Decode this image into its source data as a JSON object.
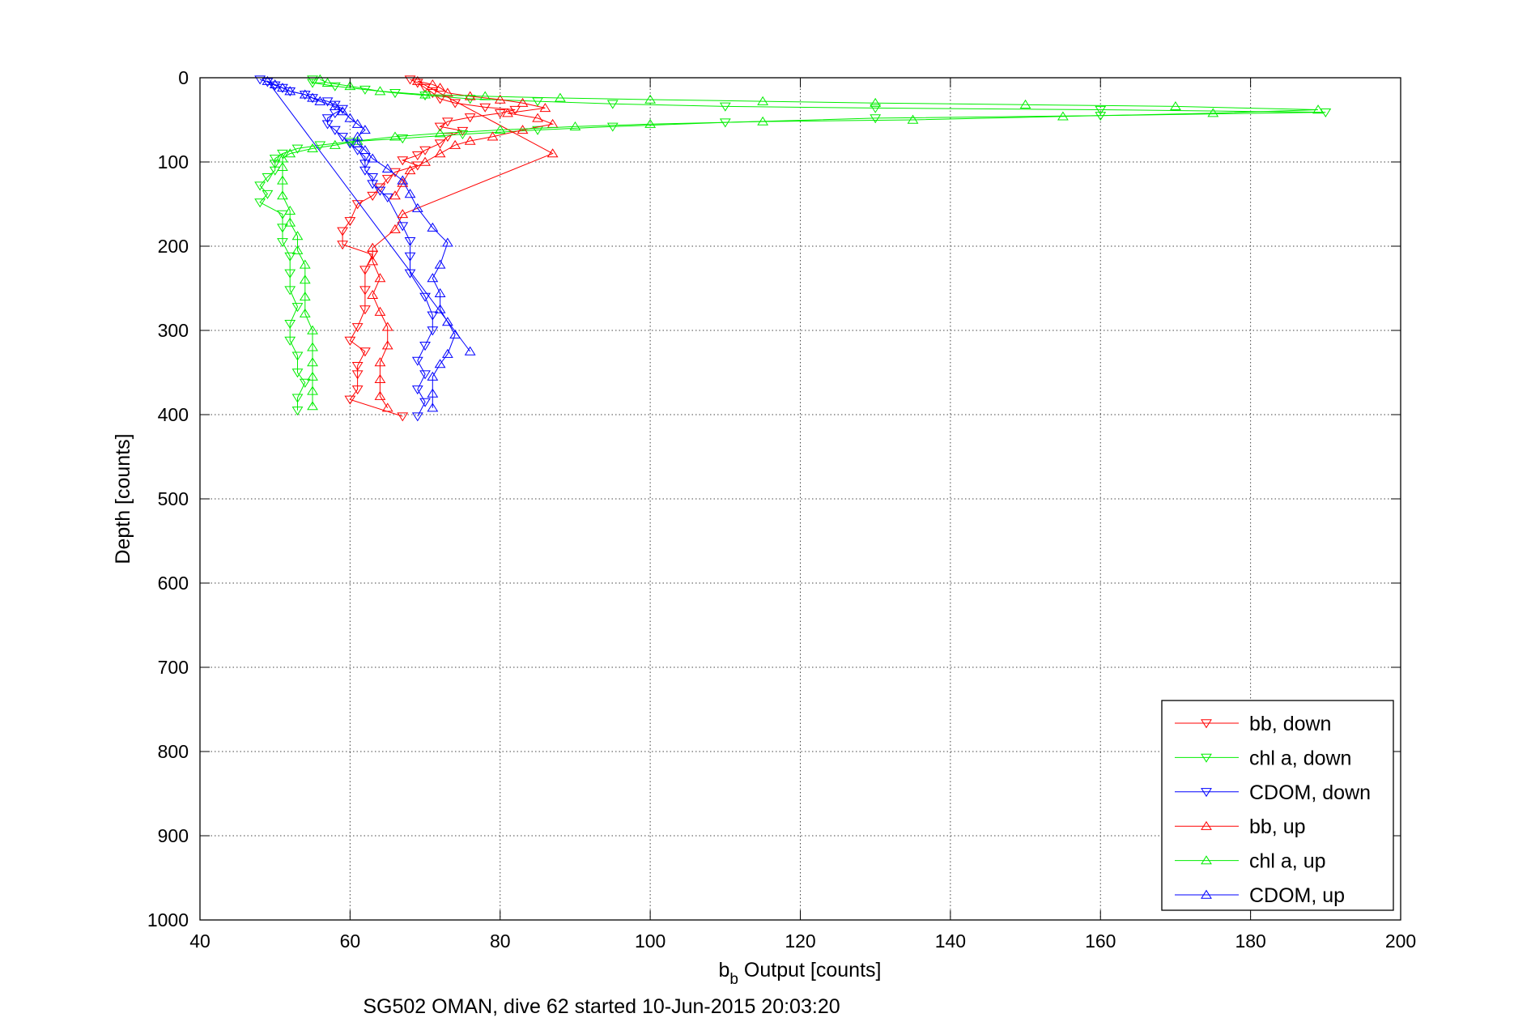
{
  "chart_data": {
    "type": "scatter",
    "xlabel_main": "b",
    "xlabel_sub": "b",
    "xlabel_rest": " Output [counts]",
    "ylabel": "Depth [counts]",
    "caption": "SG502 OMAN, dive 62 started 10-Jun-2015 20:03:20",
    "xlim": [
      40,
      200
    ],
    "ylim": [
      0,
      1000
    ],
    "y_reversed": true,
    "xticks": [
      "40",
      "60",
      "80",
      "100",
      "120",
      "140",
      "160",
      "180",
      "200"
    ],
    "yticks": [
      "0",
      "100",
      "200",
      "300",
      "400",
      "500",
      "600",
      "700",
      "800",
      "900",
      "1000"
    ],
    "grid": true,
    "legend_position": "bottom-right",
    "series": [
      {
        "name": "bb, down",
        "color": "#ff0000",
        "marker": "triangle-down",
        "points": [
          [
            68,
            2
          ],
          [
            69,
            6
          ],
          [
            70,
            12
          ],
          [
            71,
            18
          ],
          [
            72,
            25
          ],
          [
            74,
            30
          ],
          [
            78,
            35
          ],
          [
            82,
            38
          ],
          [
            80,
            42
          ],
          [
            76,
            47
          ],
          [
            73,
            52
          ],
          [
            72,
            58
          ],
          [
            75,
            63
          ],
          [
            73,
            70
          ],
          [
            72,
            78
          ],
          [
            70,
            86
          ],
          [
            69,
            92
          ],
          [
            67,
            98
          ],
          [
            69,
            104
          ],
          [
            66,
            112
          ],
          [
            65,
            120
          ],
          [
            64,
            130
          ],
          [
            63,
            140
          ],
          [
            61,
            150
          ],
          [
            60,
            170
          ],
          [
            59,
            182
          ],
          [
            59,
            198
          ],
          [
            63,
            210
          ],
          [
            62,
            228
          ],
          [
            62,
            252
          ],
          [
            62,
            275
          ],
          [
            61,
            296
          ],
          [
            60,
            312
          ],
          [
            62,
            325
          ],
          [
            61,
            342
          ],
          [
            61,
            352
          ],
          [
            61,
            370
          ],
          [
            60,
            382
          ],
          [
            67,
            402
          ]
        ]
      },
      {
        "name": "chl a, down",
        "color": "#00ee00",
        "marker": "triangle-down",
        "points": [
          [
            55,
            2
          ],
          [
            55,
            6
          ],
          [
            58,
            10
          ],
          [
            62,
            14
          ],
          [
            66,
            18
          ],
          [
            70,
            21
          ],
          [
            76,
            25
          ],
          [
            85,
            28
          ],
          [
            95,
            31
          ],
          [
            110,
            34
          ],
          [
            130,
            36
          ],
          [
            160,
            38
          ],
          [
            190,
            41
          ],
          [
            160,
            45
          ],
          [
            130,
            48
          ],
          [
            110,
            53
          ],
          [
            95,
            58
          ],
          [
            85,
            62
          ],
          [
            75,
            67
          ],
          [
            67,
            72
          ],
          [
            60,
            76
          ],
          [
            56,
            80
          ],
          [
            53,
            84
          ],
          [
            51,
            90
          ],
          [
            50,
            96
          ],
          [
            50,
            102
          ],
          [
            50,
            110
          ],
          [
            49,
            118
          ],
          [
            48,
            128
          ],
          [
            49,
            138
          ],
          [
            48,
            148
          ],
          [
            51,
            162
          ],
          [
            51,
            178
          ],
          [
            51,
            195
          ],
          [
            52,
            212
          ],
          [
            52,
            232
          ],
          [
            52,
            252
          ],
          [
            53,
            272
          ],
          [
            52,
            292
          ],
          [
            52,
            312
          ],
          [
            53,
            330
          ],
          [
            53,
            350
          ],
          [
            54,
            362
          ],
          [
            53,
            380
          ],
          [
            53,
            395
          ]
        ]
      },
      {
        "name": "CDOM, down",
        "color": "#0000ff",
        "marker": "triangle-down",
        "points": [
          [
            48,
            2
          ],
          [
            49,
            5
          ],
          [
            50,
            9
          ],
          [
            51,
            12
          ],
          [
            52,
            16
          ],
          [
            54,
            20
          ],
          [
            55,
            24
          ],
          [
            57,
            28
          ],
          [
            58,
            32
          ],
          [
            59,
            37
          ],
          [
            58,
            42
          ],
          [
            57,
            48
          ],
          [
            57,
            55
          ],
          [
            58,
            62
          ],
          [
            59,
            70
          ],
          [
            60,
            78
          ],
          [
            61,
            86
          ],
          [
            62,
            94
          ],
          [
            62,
            102
          ],
          [
            62,
            110
          ],
          [
            63,
            118
          ],
          [
            63,
            126
          ],
          [
            64,
            134
          ],
          [
            65,
            142
          ],
          [
            67,
            176
          ],
          [
            68,
            194
          ],
          [
            68,
            212
          ],
          [
            68,
            232
          ],
          [
            70,
            260
          ],
          [
            71,
            282
          ],
          [
            71,
            300
          ],
          [
            70,
            318
          ],
          [
            69,
            336
          ],
          [
            70,
            352
          ],
          [
            69,
            370
          ],
          [
            70,
            385
          ],
          [
            69,
            402
          ]
        ]
      },
      {
        "name": "bb, up",
        "color": "#ff0000",
        "marker": "triangle-up",
        "points": [
          [
            66,
            140
          ],
          [
            67,
            125
          ],
          [
            68,
            110
          ],
          [
            70,
            100
          ],
          [
            72,
            90
          ],
          [
            74,
            80
          ],
          [
            76,
            75
          ],
          [
            79,
            70
          ],
          [
            83,
            62
          ],
          [
            87,
            55
          ],
          [
            85,
            48
          ],
          [
            81,
            42
          ],
          [
            86,
            36
          ],
          [
            83,
            30
          ],
          [
            80,
            26
          ],
          [
            76,
            22
          ],
          [
            73,
            18
          ],
          [
            72,
            12
          ],
          [
            71,
            8
          ],
          [
            69,
            4
          ],
          [
            87,
            90
          ],
          [
            67,
            162
          ],
          [
            66,
            180
          ],
          [
            63,
            202
          ],
          [
            63,
            218
          ],
          [
            64,
            238
          ],
          [
            63,
            258
          ],
          [
            64,
            278
          ],
          [
            65,
            296
          ],
          [
            65,
            318
          ],
          [
            64,
            338
          ],
          [
            64,
            358
          ],
          [
            64,
            378
          ],
          [
            65,
            392
          ]
        ]
      },
      {
        "name": "chl a, up",
        "color": "#00ee00",
        "marker": "triangle-up",
        "points": [
          [
            55,
            390
          ],
          [
            55,
            372
          ],
          [
            55,
            355
          ],
          [
            55,
            338
          ],
          [
            55,
            320
          ],
          [
            55,
            300
          ],
          [
            54,
            280
          ],
          [
            54,
            260
          ],
          [
            54,
            240
          ],
          [
            54,
            222
          ],
          [
            53,
            205
          ],
          [
            53,
            188
          ],
          [
            52,
            172
          ],
          [
            52,
            158
          ],
          [
            51,
            140
          ],
          [
            51,
            122
          ],
          [
            51,
            106
          ],
          [
            51,
            96
          ],
          [
            52,
            90
          ],
          [
            55,
            84
          ],
          [
            58,
            80
          ],
          [
            61,
            75
          ],
          [
            66,
            70
          ],
          [
            72,
            66
          ],
          [
            80,
            62
          ],
          [
            90,
            58
          ],
          [
            100,
            55
          ],
          [
            115,
            52
          ],
          [
            135,
            50
          ],
          [
            155,
            46
          ],
          [
            175,
            42
          ],
          [
            189,
            38
          ],
          [
            170,
            34
          ],
          [
            150,
            32
          ],
          [
            130,
            30
          ],
          [
            115,
            28
          ],
          [
            100,
            26
          ],
          [
            88,
            24
          ],
          [
            78,
            22
          ],
          [
            70,
            20
          ],
          [
            64,
            16
          ],
          [
            60,
            10
          ],
          [
            57,
            6
          ],
          [
            56,
            2
          ]
        ]
      },
      {
        "name": "CDOM, up",
        "color": "#0000ff",
        "marker": "triangle-up",
        "points": [
          [
            71,
            392
          ],
          [
            71,
            375
          ],
          [
            71,
            355
          ],
          [
            72,
            340
          ],
          [
            73,
            328
          ],
          [
            74,
            305
          ],
          [
            73,
            290
          ],
          [
            72,
            275
          ],
          [
            72,
            256
          ],
          [
            71,
            238
          ],
          [
            72,
            222
          ],
          [
            73,
            196
          ],
          [
            71,
            178
          ],
          [
            69,
            155
          ],
          [
            68,
            138
          ],
          [
            67,
            122
          ],
          [
            65,
            108
          ],
          [
            63,
            96
          ],
          [
            62,
            86
          ],
          [
            61,
            78
          ],
          [
            61,
            70
          ],
          [
            62,
            62
          ],
          [
            61,
            55
          ],
          [
            60,
            48
          ],
          [
            59,
            40
          ],
          [
            58,
            34
          ],
          [
            56,
            28
          ],
          [
            55,
            24
          ],
          [
            54,
            20
          ],
          [
            52,
            16
          ],
          [
            51,
            12
          ],
          [
            50,
            8
          ],
          [
            49,
            4
          ],
          [
            76,
            325
          ]
        ]
      }
    ]
  }
}
